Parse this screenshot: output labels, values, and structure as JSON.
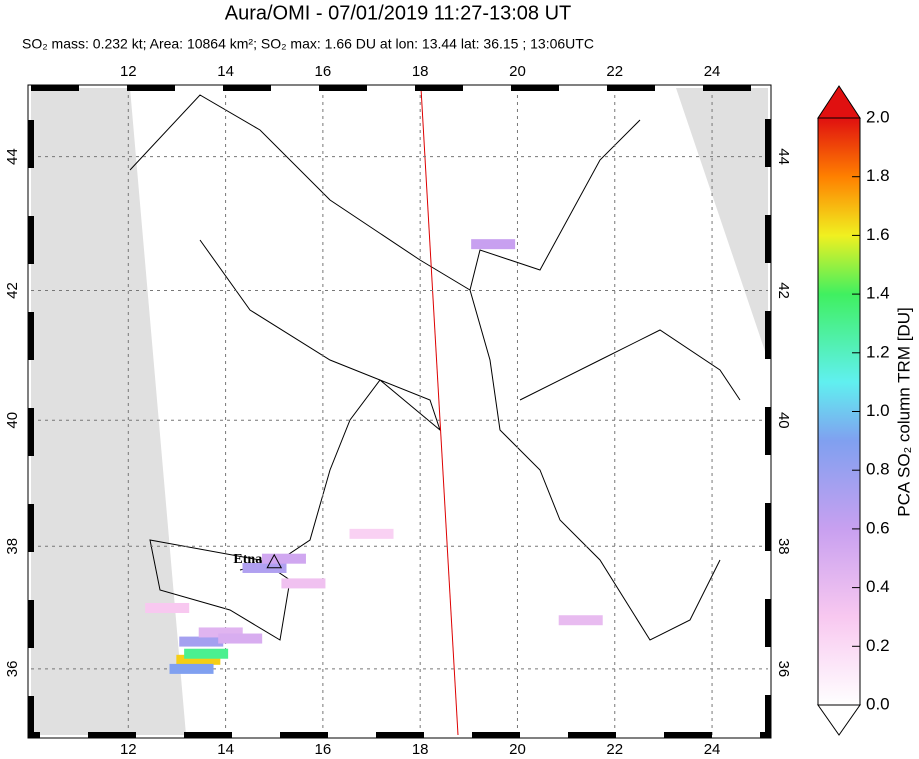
{
  "chart_data": {
    "type": "map",
    "title": "Aura/OMI - 07/01/2019 11:27-13:08 UT",
    "subtitle": "SO₂ mass: 0.232 kt; Area: 10864 km²; SO₂ max: 1.66 DU at lon: 13.44 lat: 36.15 ; 13:06UTC",
    "projection": "mercator",
    "xlim": [
      10,
      25.15
    ],
    "ylim": [
      34.9,
      45
    ],
    "xticks": [
      12,
      14,
      16,
      18,
      20,
      22,
      24
    ],
    "yticks": [
      36,
      38,
      40,
      42,
      44
    ],
    "grid": true,
    "annotation": {
      "text": "Etna",
      "lon": 15.0,
      "lat": 37.75
    },
    "pixels": {
      "lon": [
        13.44,
        13.6,
        13.3,
        13.5,
        14.8,
        15.2,
        13.9,
        14.3,
        12.8,
        15.6,
        17.0,
        21.3,
        19.5
      ],
      "lat": [
        36.15,
        36.25,
        36.0,
        36.45,
        37.65,
        37.8,
        36.6,
        36.5,
        37.0,
        37.4,
        38.2,
        36.8,
        42.7
      ],
      "values": [
        1.66,
        1.3,
        0.9,
        0.75,
        0.7,
        0.55,
        0.45,
        0.5,
        0.3,
        0.35,
        0.25,
        0.4,
        0.6
      ]
    },
    "colorbar": {
      "label": "PCA SO₂ column TRM [DU]",
      "lim": [
        0,
        2
      ],
      "ticks": [
        {
          "value": 0,
          "label": "0.0"
        },
        {
          "value": 0.2,
          "label": "0.2"
        },
        {
          "value": 0.4,
          "label": "0.4"
        },
        {
          "value": 0.6,
          "label": "0.6"
        },
        {
          "value": 0.8,
          "label": "0.8"
        },
        {
          "value": 1,
          "label": "1.0"
        },
        {
          "value": 1.2,
          "label": "1.2"
        },
        {
          "value": 1.4,
          "label": "1.4"
        },
        {
          "value": 1.6,
          "label": "1.6"
        },
        {
          "value": 1.8,
          "label": "1.8"
        },
        {
          "value": 2,
          "label": "2.0"
        }
      ]
    }
  }
}
